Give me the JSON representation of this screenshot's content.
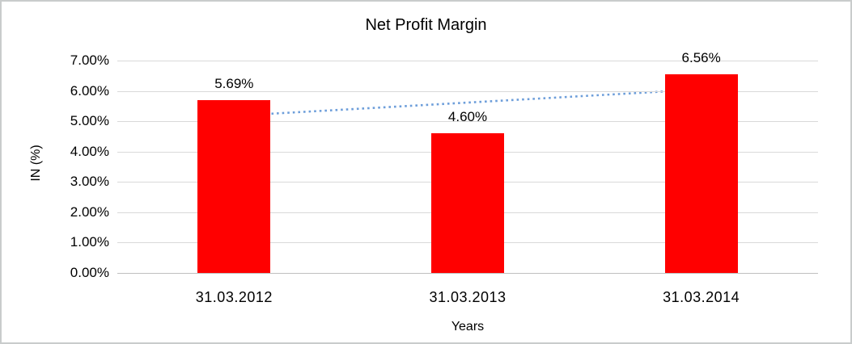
{
  "chart_data": {
    "type": "bar",
    "title": "Net Profit Margin",
    "xlabel": "Years",
    "ylabel": "IN (%)",
    "categories": [
      "31.03.2012",
      "31.03.2013",
      "31.03.2014"
    ],
    "values": [
      5.69,
      4.6,
      6.56
    ],
    "data_labels": [
      "5.69%",
      "4.60%",
      "6.56%"
    ],
    "ylim": [
      0,
      7
    ],
    "ytick_step": 1,
    "ytick_labels": [
      "0.00%",
      "1.00%",
      "2.00%",
      "3.00%",
      "4.00%",
      "5.00%",
      "6.00%",
      "7.00%"
    ],
    "grid": true,
    "legend": "none",
    "bar_color": "#ff0000",
    "gridline_color": "#d9d9d9",
    "axis_line_color": "#bfbfbf",
    "trendline": {
      "type": "linear",
      "style": "dotted",
      "color": "#6d9eda",
      "start_value": 5.18,
      "end_value": 6.05
    }
  }
}
